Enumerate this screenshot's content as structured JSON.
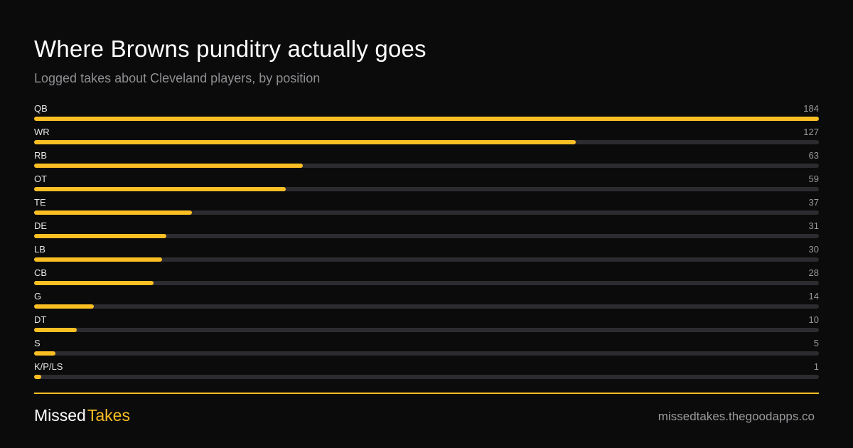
{
  "header": {
    "title": "Where Browns punditry actually goes",
    "subtitle": "Logged takes about Cleveland players, by position"
  },
  "chart_data": {
    "type": "bar",
    "orientation": "horizontal",
    "title": "Where Browns punditry actually goes",
    "subtitle": "Logged takes about Cleveland players, by position",
    "categories": [
      "QB",
      "WR",
      "RB",
      "OT",
      "TE",
      "DE",
      "LB",
      "CB",
      "G",
      "DT",
      "S",
      "K/P/LS"
    ],
    "values": [
      184,
      127,
      63,
      59,
      37,
      31,
      30,
      28,
      14,
      10,
      5,
      1
    ],
    "xlim": [
      0,
      184
    ],
    "grid": false,
    "legend": "none"
  },
  "colors": {
    "background": "#0b0b0b",
    "bar_fill": "#fbbf24",
    "bar_track": "#2c2c30",
    "accent": "#fbbf24"
  },
  "footer": {
    "brand_part1": "Missed",
    "brand_part2": "Takes",
    "site": "missedtakes.thegoodapps.co"
  }
}
